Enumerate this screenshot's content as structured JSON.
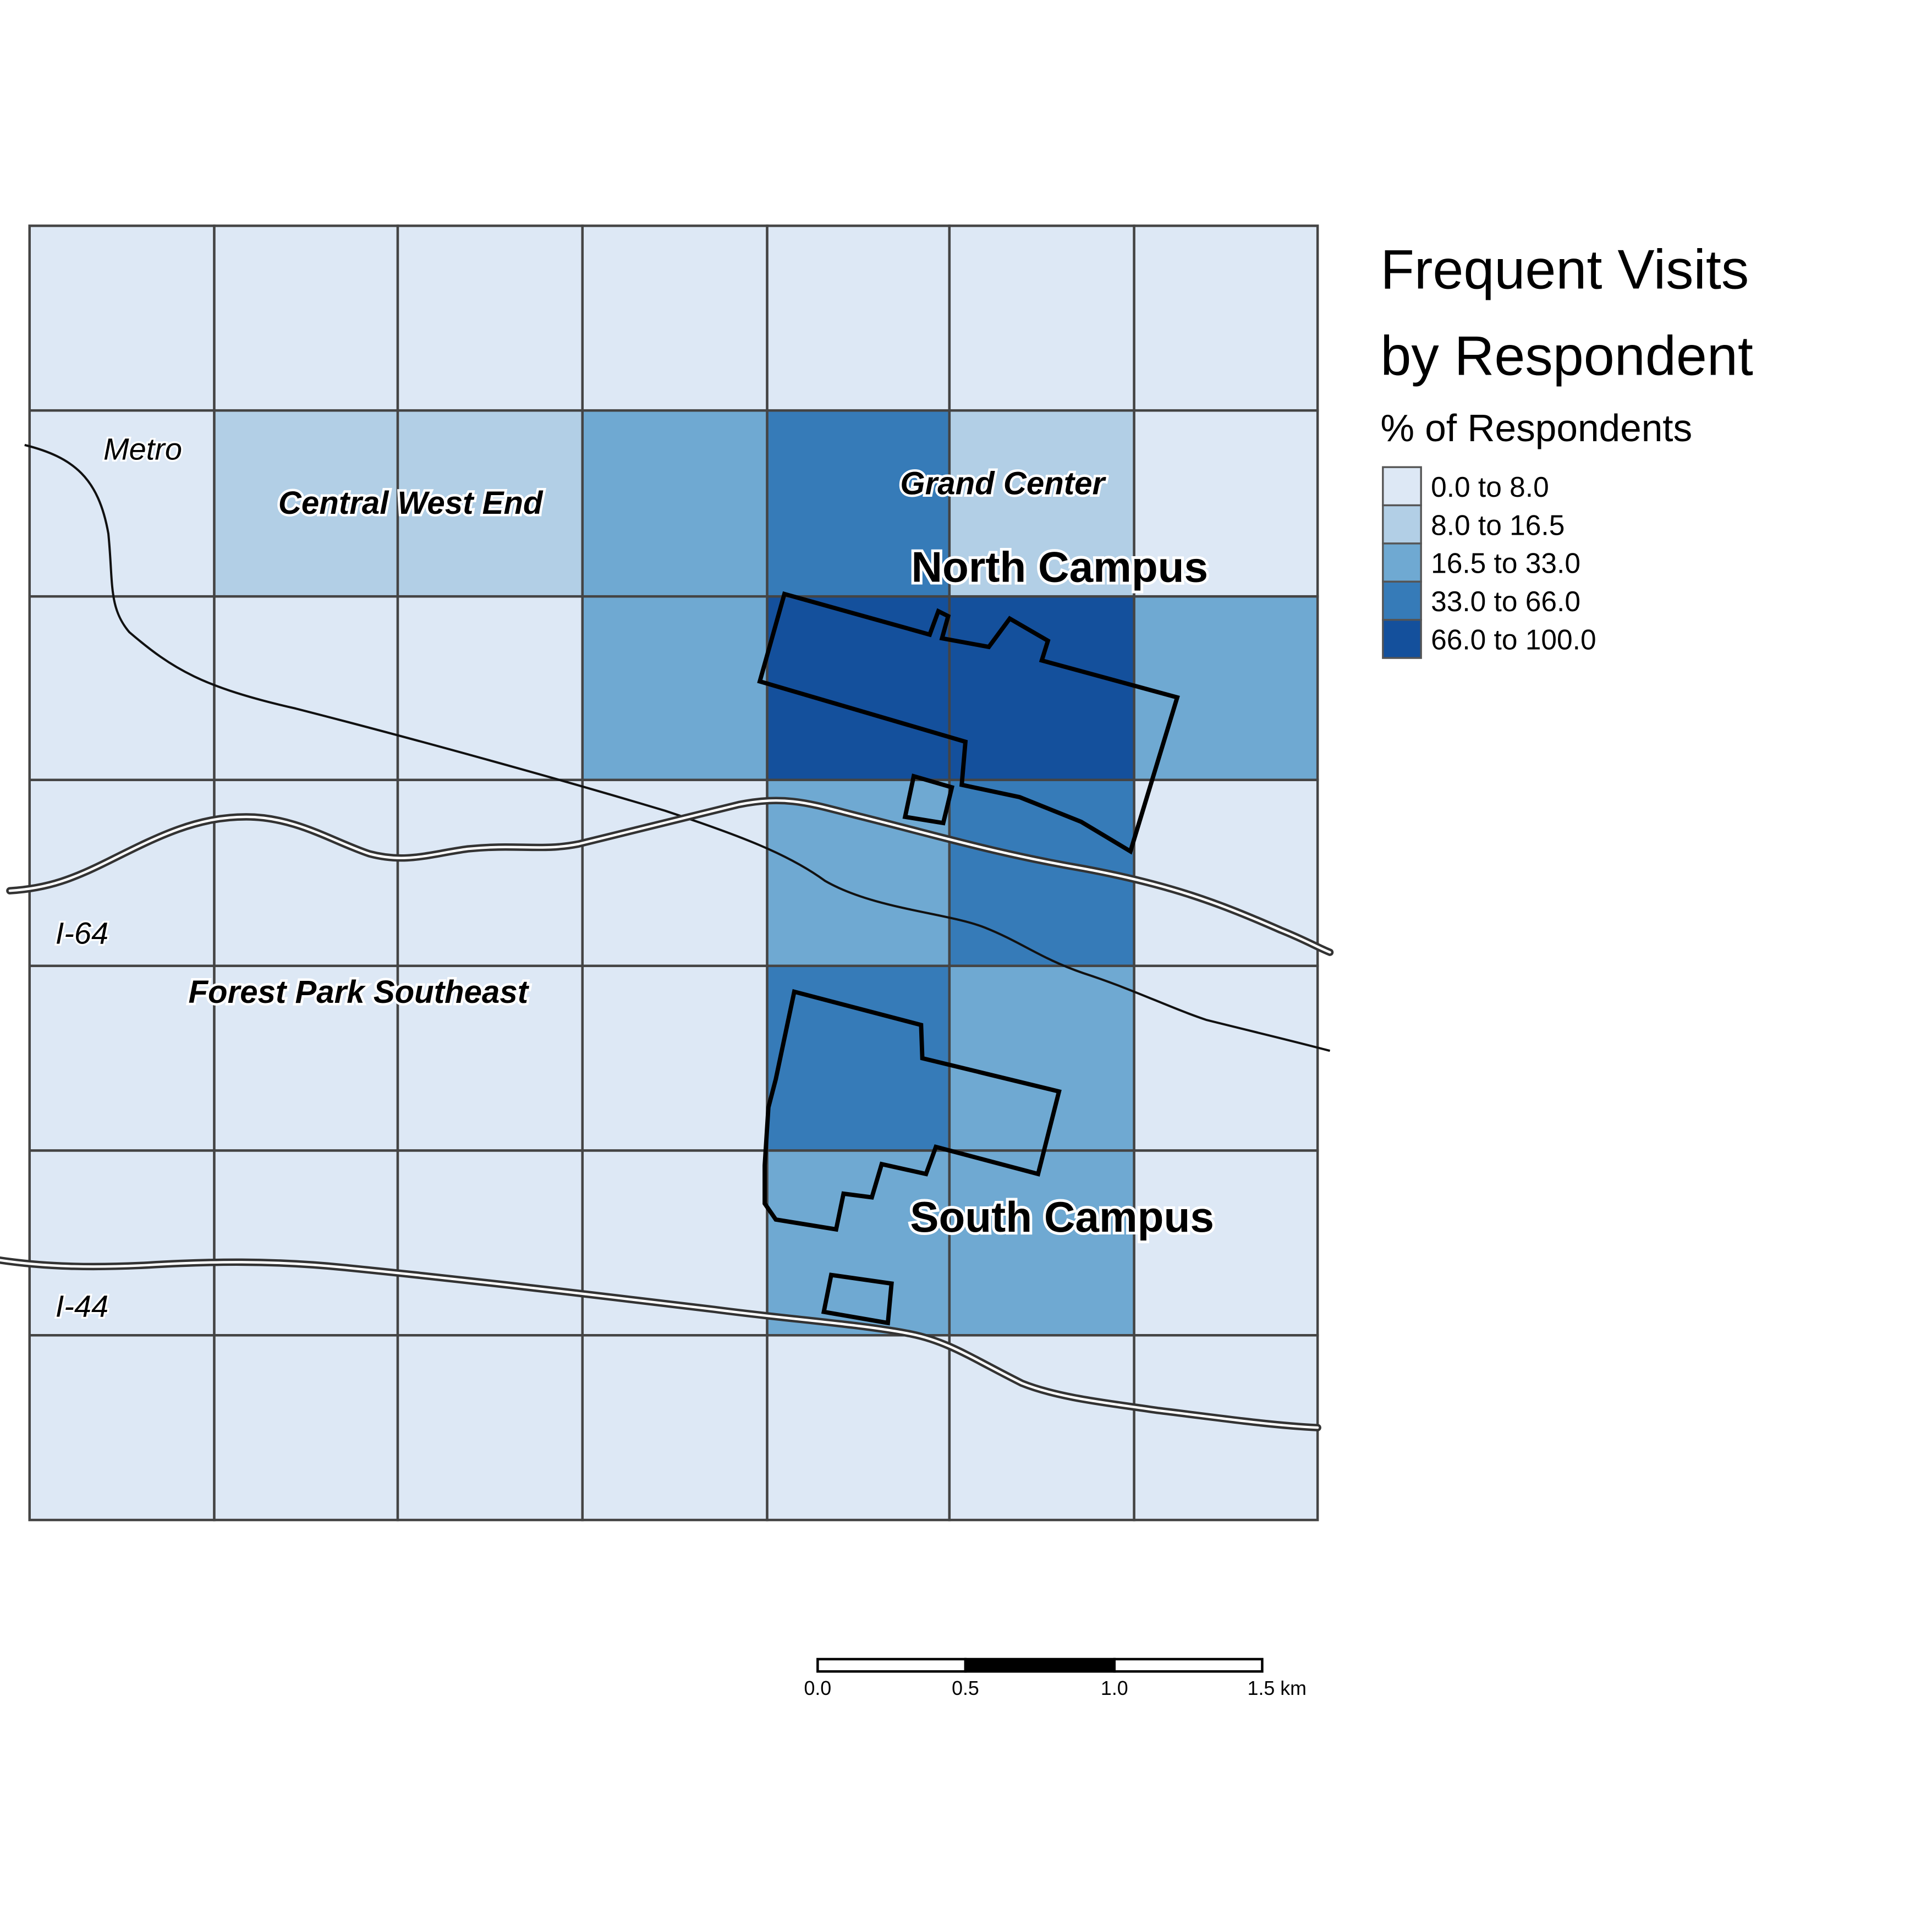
{
  "legend": {
    "title_line1": "Frequent Visits",
    "title_line2": "by Respondent",
    "subtitle": "% of Respondents",
    "classes": [
      {
        "label": "0.0 to 8.0",
        "color": "#dde8f5"
      },
      {
        "label": "8.0 to 16.5",
        "color": "#b2cfe6"
      },
      {
        "label": "16.5 to 33.0",
        "color": "#6fa9d2"
      },
      {
        "label": "33.0 to 66.0",
        "color": "#367bb8"
      },
      {
        "label": "66.0 to 100.0",
        "color": "#14509c"
      }
    ]
  },
  "grid": {
    "rows": 7,
    "cols": 7,
    "class_index": [
      [
        0,
        0,
        0,
        0,
        0,
        0,
        0
      ],
      [
        0,
        1,
        1,
        2,
        3,
        1,
        0
      ],
      [
        0,
        0,
        0,
        2,
        4,
        4,
        2
      ],
      [
        0,
        0,
        0,
        0,
        2,
        3,
        0
      ],
      [
        0,
        0,
        0,
        0,
        3,
        2,
        0
      ],
      [
        0,
        0,
        0,
        0,
        2,
        2,
        0
      ],
      [
        0,
        0,
        0,
        0,
        0,
        0,
        0
      ]
    ]
  },
  "labels": {
    "metro": "Metro",
    "i64": "I-64",
    "i44": "I-44",
    "central_west_end": "Central West End",
    "grand_center": "Grand Center",
    "forest_park_southeast": "Forest Park Southeast",
    "north_campus": "North Campus",
    "south_campus": "South Campus"
  },
  "scale_bar": {
    "ticks": [
      "0.0",
      "0.5",
      "1.0",
      "1.5 km"
    ]
  }
}
